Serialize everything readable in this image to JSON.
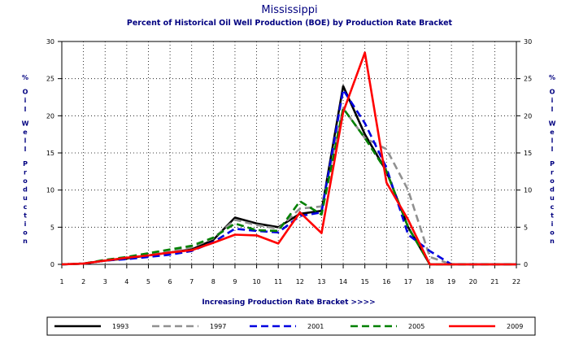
{
  "chart_data": {
    "type": "line",
    "title": "Mississippi",
    "subtitle": "Percent of Historical Oil Well Production (BOE) by Production Rate Bracket",
    "xlabel": "Increasing Production Rate Bracket >>>>",
    "ylabel": "% Oil Well Production",
    "ylabel_chars": [
      "%",
      "",
      "O",
      "i",
      "l",
      "",
      "W",
      "e",
      "l",
      "l",
      "",
      "P",
      "r",
      "o",
      "d",
      "u",
      "c",
      "t",
      "i",
      "o",
      "n"
    ],
    "categories": [
      1,
      2,
      3,
      4,
      5,
      6,
      7,
      8,
      9,
      10,
      11,
      12,
      13,
      14,
      15,
      16,
      17,
      18,
      19,
      20,
      21,
      22
    ],
    "xlim": [
      1,
      22
    ],
    "ylim": [
      0,
      30
    ],
    "yticks": [
      0,
      5,
      10,
      15,
      20,
      25,
      30
    ],
    "grid": true,
    "legend_position": "bottom",
    "series": [
      {
        "name": "1993",
        "color": "#000000",
        "dash": "solid",
        "values": [
          0,
          0.1,
          0.5,
          0.8,
          1.2,
          1.6,
          2.0,
          3.3,
          6.3,
          5.5,
          5.0,
          6.8,
          7.2,
          24.0,
          17.5,
          12.5,
          5.0,
          0,
          0,
          0,
          0,
          0
        ]
      },
      {
        "name": "1997",
        "color": "#909090",
        "dash": "dashed",
        "values": [
          0,
          0.1,
          0.6,
          0.9,
          1.3,
          1.7,
          2.3,
          3.5,
          6.0,
          5.3,
          4.8,
          7.5,
          7.8,
          21.0,
          17.0,
          15.5,
          10.0,
          1.0,
          0,
          0,
          0,
          0
        ]
      },
      {
        "name": "2001",
        "color": "#0000E0",
        "dash": "dashed",
        "values": [
          0,
          0.1,
          0.5,
          0.7,
          1.0,
          1.3,
          1.8,
          3.0,
          4.8,
          4.5,
          4.3,
          6.5,
          7.0,
          23.5,
          19.0,
          13.0,
          4.0,
          1.8,
          0,
          0,
          0,
          0
        ]
      },
      {
        "name": "2005",
        "color": "#008000",
        "dash": "dashed",
        "values": [
          0,
          0.1,
          0.6,
          1.0,
          1.5,
          2.0,
          2.5,
          3.6,
          5.5,
          4.6,
          4.5,
          8.5,
          6.7,
          21.0,
          17.0,
          12.5,
          5.0,
          0,
          0,
          0,
          0,
          0
        ]
      },
      {
        "name": "2009",
        "color": "#FF0000",
        "dash": "solid",
        "values": [
          0,
          0.1,
          0.5,
          0.9,
          1.2,
          1.6,
          1.9,
          2.9,
          4.0,
          3.9,
          2.8,
          7.0,
          4.2,
          20.5,
          28.5,
          11.0,
          6.0,
          0,
          0,
          0,
          0,
          0
        ]
      }
    ]
  }
}
